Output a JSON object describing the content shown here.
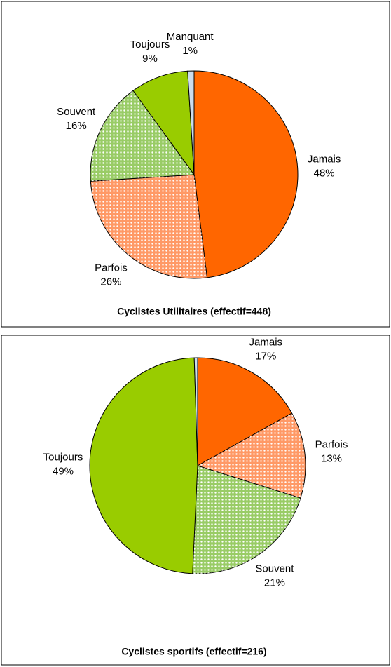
{
  "chart_data": [
    {
      "type": "pie",
      "title": "Cyclistes Utilitaires (effectif=448)",
      "categories": [
        "Jamais",
        "Parfois",
        "Souvent",
        "Toujours",
        "Manquant"
      ],
      "values": [
        48,
        26,
        16,
        9,
        1
      ],
      "value_labels": [
        "48%",
        "26%",
        "16%",
        "9%",
        "1%"
      ],
      "colors": [
        "#ff6600",
        "#ff9966",
        "#99cc66",
        "#99cc00",
        "#ccddee"
      ],
      "dotted": [
        false,
        true,
        true,
        false,
        false
      ]
    },
    {
      "type": "pie",
      "title": "Cyclistes sportifs (effectif=216)",
      "categories": [
        "Jamais",
        "Parfois",
        "Souvent",
        "Toujours",
        null
      ],
      "values": [
        17,
        13,
        21,
        49,
        0.5
      ],
      "value_labels": [
        "17%",
        "13%",
        "21%",
        "49%",
        null
      ],
      "colors": [
        "#ff6600",
        "#ff9966",
        "#99cc66",
        "#99cc00",
        "#ccddee"
      ],
      "dotted": [
        false,
        true,
        true,
        false,
        false
      ]
    }
  ]
}
